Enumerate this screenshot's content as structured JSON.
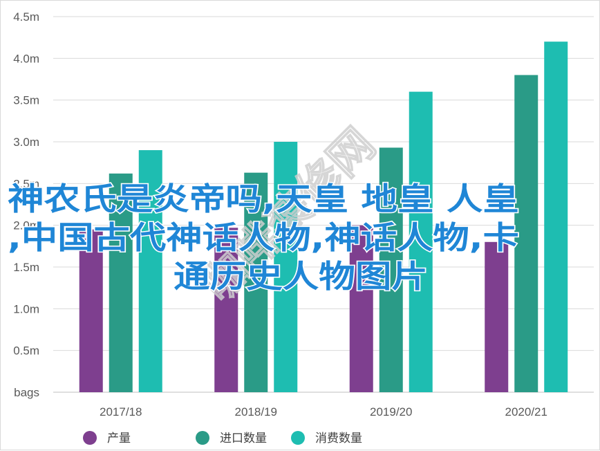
{
  "chart_data": {
    "type": "bar",
    "categories": [
      "2017/18",
      "2018/19",
      "2019/20",
      "2020/21"
    ],
    "series": [
      {
        "name": "产量",
        "color": "#7e3f8f",
        "values": [
          1.95,
          1.97,
          2.0,
          1.8
        ]
      },
      {
        "name": "进口数量",
        "color": "#2a9b87",
        "values": [
          2.62,
          2.63,
          2.93,
          3.8
        ]
      },
      {
        "name": "消费数量",
        "color": "#1ebdb1",
        "values": [
          2.9,
          3.0,
          3.6,
          4.2
        ]
      }
    ],
    "y_ticks": [
      "bags",
      "0.5m",
      "1.0m",
      "1.5m",
      "2.0m",
      "2.5m",
      "3.0m",
      "3.5m",
      "4.0m",
      "4.5m"
    ],
    "ylim": [
      0,
      4.5
    ],
    "grid": "horizontal",
    "legend": "bottom-center",
    "overlay_text": [
      "神农氏是炎帝吗,天皇 地皇 人皇",
      ",中国古代神话人物,神话人物,卡",
      "通历史人物图片"
    ],
    "watermark": "咖啡装修网"
  }
}
